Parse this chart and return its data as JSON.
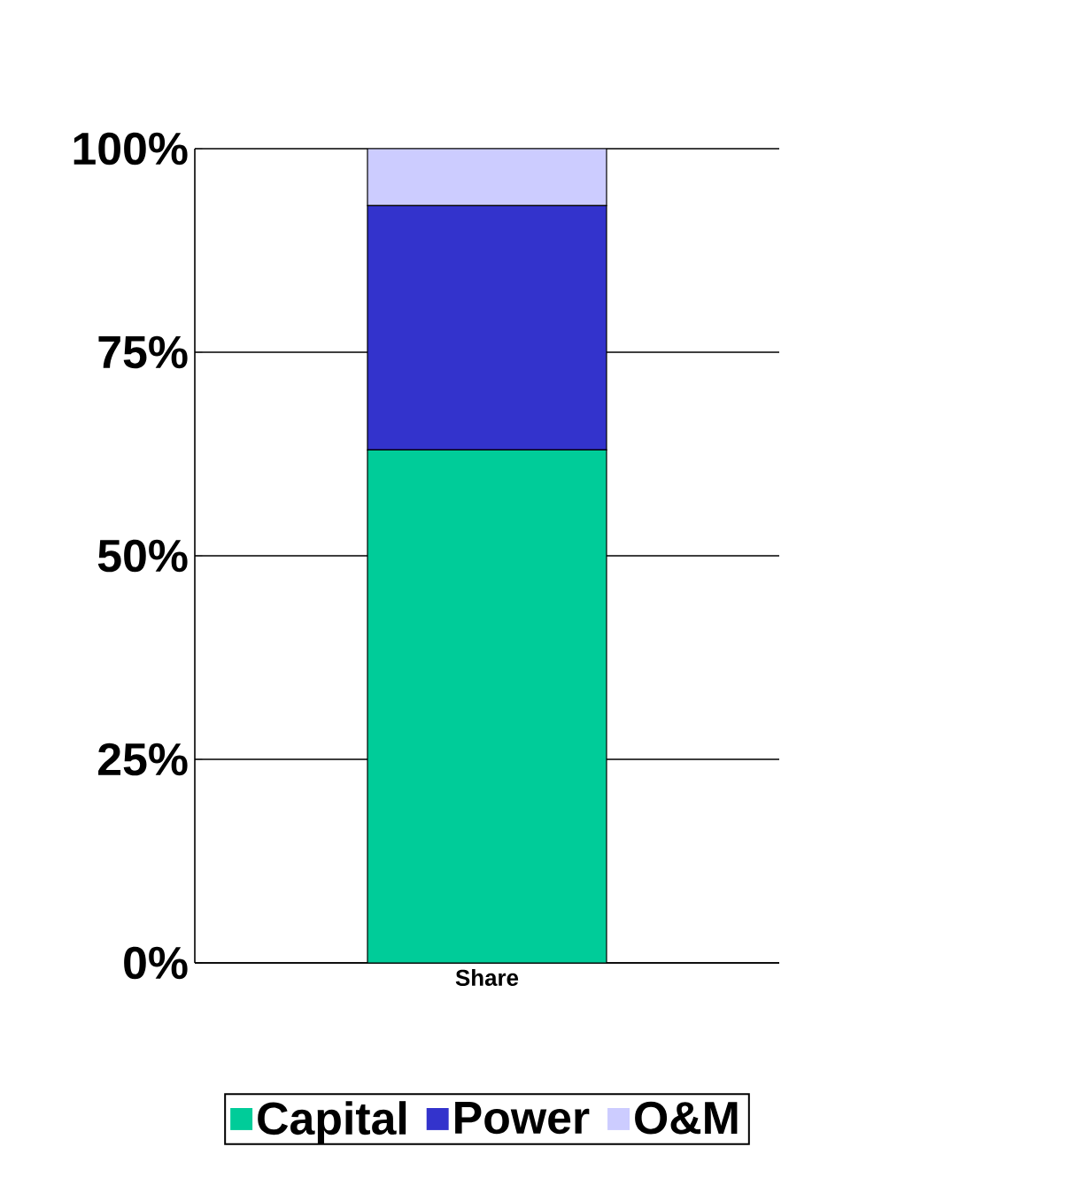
{
  "chart_data": {
    "type": "bar",
    "stacked": true,
    "categories": [
      "Share"
    ],
    "series": [
      {
        "name": "Capital",
        "color": "#00cc99",
        "values": [
          63
        ]
      },
      {
        "name": "Power",
        "color": "#3333cc",
        "values": [
          30
        ]
      },
      {
        "name": "O&M",
        "color": "#ccccff",
        "values": [
          7
        ]
      }
    ],
    "ylim": [
      0,
      100
    ],
    "yticks": [
      {
        "value": 0,
        "label": "0%"
      },
      {
        "value": 25,
        "label": "25%"
      },
      {
        "value": 50,
        "label": "50%"
      },
      {
        "value": 75,
        "label": "75%"
      },
      {
        "value": 100,
        "label": "100%"
      }
    ],
    "grid": "y",
    "legend": "bottom"
  }
}
